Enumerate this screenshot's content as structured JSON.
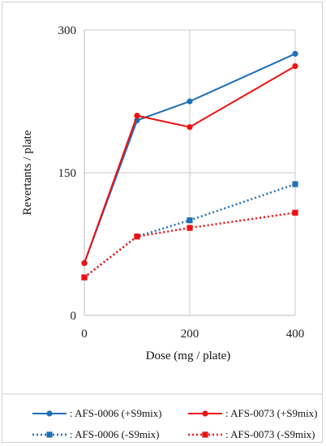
{
  "chart_data": {
    "type": "line",
    "x": [
      0,
      100,
      200,
      400
    ],
    "xticks": [
      "0",
      "200",
      "400"
    ],
    "yticks": [
      "0",
      "150",
      "300"
    ],
    "xlabel": "Dose (mg / plate)",
    "ylabel": "Revertants / plate",
    "ylim": [
      0,
      300
    ],
    "grid": true,
    "legend_position": "bottom",
    "series": [
      {
        "name": ": AFS-0006 (+S9mix)",
        "values": [
          55,
          205,
          225,
          275
        ],
        "color": "#1f6fb7",
        "dashed": false,
        "marker": "circle"
      },
      {
        "name": ": AFS-0073 (+S9mix)",
        "values": [
          55,
          210,
          198,
          262
        ],
        "color": "#ee1111",
        "dashed": false,
        "marker": "circle"
      },
      {
        "name": ": AFS-0006 (-S9mix)",
        "values": [
          40,
          83,
          100,
          138
        ],
        "color": "#1f6fb7",
        "dashed": true,
        "marker": "square"
      },
      {
        "name": ": AFS-0073 (-S9mix)",
        "values": [
          40,
          83,
          92,
          108
        ],
        "color": "#ee1111",
        "dashed": true,
        "marker": "square"
      }
    ]
  }
}
